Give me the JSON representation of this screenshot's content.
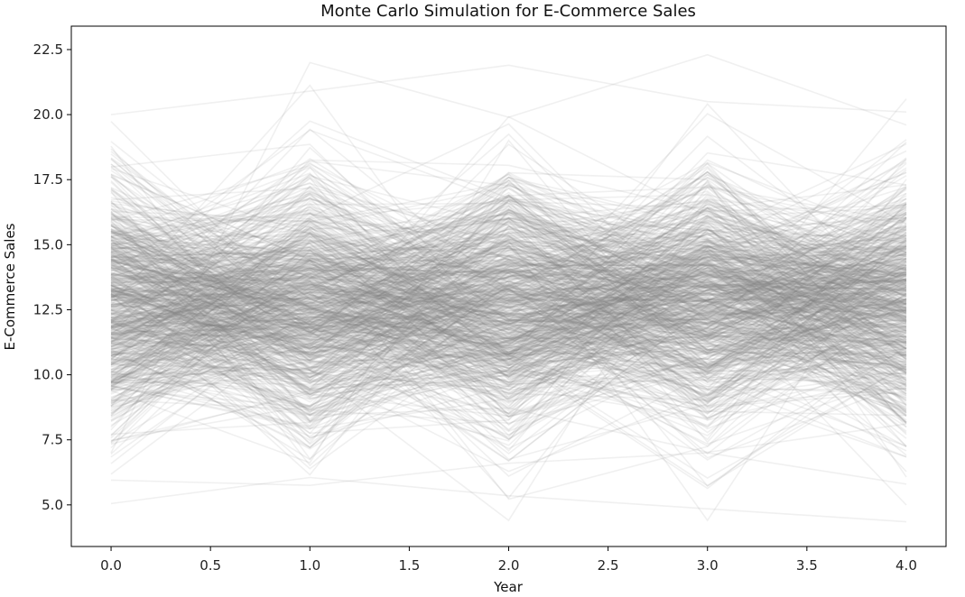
{
  "chart_data": {
    "type": "line",
    "title": "Monte Carlo Simulation for E-Commerce Sales",
    "xlabel": "Year",
    "ylabel": "E-Commerce Sales",
    "x": [
      0,
      1,
      2,
      3,
      4
    ],
    "xlim": [
      -0.2,
      4.2
    ],
    "ylim": [
      3.4,
      23.4
    ],
    "xticks": [
      "0.0",
      "0.5",
      "1.0",
      "1.5",
      "2.0",
      "2.5",
      "3.0",
      "3.5",
      "4.0"
    ],
    "yticks": [
      "5.0",
      "7.5",
      "10.0",
      "12.5",
      "15.0",
      "17.5",
      "20.0",
      "22.5"
    ],
    "line_color": "#808080",
    "line_alpha": 0.12,
    "grid": false,
    "legend": "none",
    "series": [
      {
        "values": [
          5.05,
          6.05,
          5.35,
          4.85,
          4.35
        ]
      },
      {
        "values": [
          5.95,
          5.75,
          6.6,
          7.0,
          5.8
        ]
      },
      {
        "values": [
          7.0,
          22.0,
          19.9,
          22.3,
          19.6
        ]
      },
      {
        "values": [
          20.0,
          20.9,
          21.9,
          20.5,
          20.1
        ]
      },
      {
        "values": [
          10.2,
          13.5,
          11.8,
          14.1,
          12.2
        ]
      },
      {
        "values": [
          12.8,
          11.0,
          13.9,
          12.4,
          11.5
        ]
      },
      {
        "values": [
          14.2,
          16.9,
          12.1,
          10.8,
          13.7
        ]
      },
      {
        "values": [
          9.6,
          12.1,
          15.8,
          13.6,
          10.9
        ]
      },
      {
        "values": [
          13.5,
          9.4,
          10.2,
          15.9,
          14.6
        ]
      },
      {
        "values": [
          11.4,
          14.8,
          12.7,
          9.1,
          16.2
        ]
      },
      {
        "values": [
          16.1,
          12.6,
          9.3,
          12.9,
          12.8
        ]
      },
      {
        "values": [
          12.0,
          18.1,
          14.4,
          11.7,
          9.4
        ]
      },
      {
        "values": [
          8.7,
          11.2,
          12.5,
          17.8,
          13.2
        ]
      },
      {
        "values": [
          15.3,
          13.9,
          16.5,
          10.3,
          11.1
        ]
      },
      {
        "values": [
          13.1,
          8.3,
          13.4,
          13.8,
          15.7
        ]
      },
      {
        "values": [
          10.9,
          15.6,
          8.1,
          12.2,
          14.0
        ]
      },
      {
        "values": [
          17.4,
          10.5,
          11.6,
          14.9,
          8.9
        ]
      },
      {
        "values": [
          11.9,
          13.1,
          17.7,
          9.7,
          12.5
        ]
      },
      {
        "values": [
          14.8,
          16.2,
          10.8,
          16.4,
          17.3
        ]
      },
      {
        "values": [
          9.1,
          12.9,
          14.9,
          11.3,
          10.2
        ]
      }
    ]
  }
}
